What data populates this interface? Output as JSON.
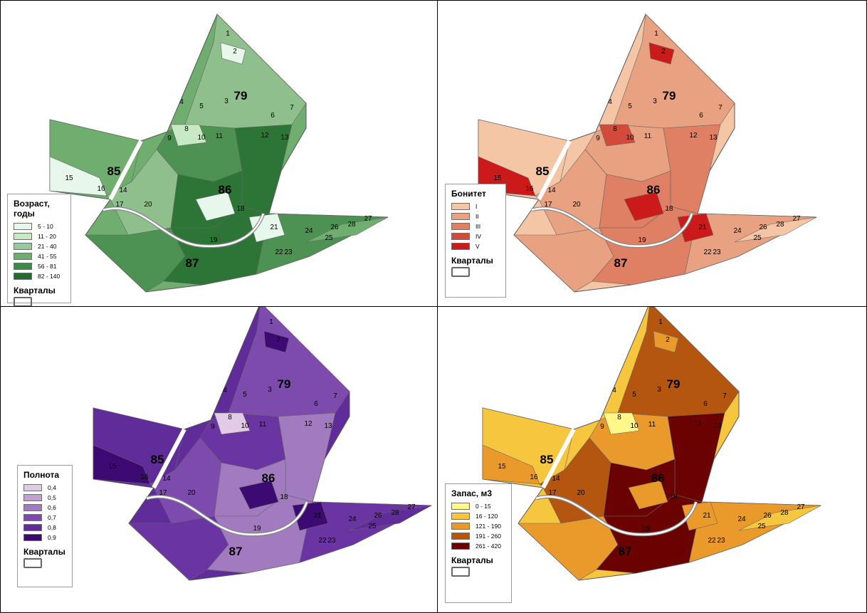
{
  "panels": [
    {
      "id": "age",
      "legend_title": "Возраст, годы",
      "classes": [
        {
          "label": "5 - 10",
          "color": "#e8f7ec"
        },
        {
          "label": "11 - 20",
          "color": "#c7e9c3"
        },
        {
          "label": "21 - 40",
          "color": "#96c99c"
        },
        {
          "label": "41 - 55",
          "color": "#6fae6f"
        },
        {
          "label": "56 - 81",
          "color": "#3d8a48"
        },
        {
          "label": "82 - 140",
          "color": "#226a30"
        }
      ],
      "quarters_label": "Кварталы",
      "fills": [
        "#8fbf8c",
        "#4d9253",
        "#2c7537",
        "#6fae6f",
        "#c7e9c3",
        "#e8f7ec"
      ]
    },
    {
      "id": "bonitet",
      "legend_title": "Бонитет",
      "classes": [
        {
          "label": "I",
          "color": "#f4c6a6"
        },
        {
          "label": "II",
          "color": "#e8a282"
        },
        {
          "label": "III",
          "color": "#df7f63"
        },
        {
          "label": "IV",
          "color": "#d44a3a"
        },
        {
          "label": "V",
          "color": "#cc1a1a"
        }
      ],
      "quarters_label": "Кварталы",
      "fills": [
        "#e8a282",
        "#e8a282",
        "#df7f63",
        "#f4c6a6",
        "#d44a3a",
        "#cc1a1a"
      ]
    },
    {
      "id": "density",
      "legend_title": "Полнота",
      "classes": [
        {
          "label": "0,4",
          "color": "#e2cbe5"
        },
        {
          "label": "0,5",
          "color": "#c2a0d0"
        },
        {
          "label": "0,6",
          "color": "#a27ac0"
        },
        {
          "label": "0,7",
          "color": "#7d4aae"
        },
        {
          "label": "0,8",
          "color": "#5f2c99"
        },
        {
          "label": "0,9",
          "color": "#3d0a73"
        }
      ],
      "quarters_label": "Кварталы",
      "fills": [
        "#7d4aae",
        "#6a34a2",
        "#a27ac0",
        "#5f2c99",
        "#e2cbe5",
        "#3d0a73"
      ]
    },
    {
      "id": "stock",
      "legend_title": "Запас, м3",
      "classes": [
        {
          "label": "0 - 15",
          "color": "#fff78a"
        },
        {
          "label": "16 - 120",
          "color": "#f7c63f"
        },
        {
          "label": "121 - 190",
          "color": "#ea9a2b"
        },
        {
          "label": "191 - 260",
          "color": "#b4560f"
        },
        {
          "label": "261 - 420",
          "color": "#6b0202"
        }
      ],
      "quarters_label": "Кварталы",
      "fills": [
        "#b4560f",
        "#ea9a2b",
        "#6b0202",
        "#f7c63f",
        "#fff78a",
        "#ea9a2b"
      ]
    }
  ],
  "quarters": [
    "79",
    "85",
    "86",
    "87"
  ],
  "stands": [
    "1",
    "2",
    "3",
    "4",
    "5",
    "6",
    "7",
    "8",
    "9",
    "10",
    "11",
    "12",
    "13",
    "14",
    "15",
    "16",
    "17",
    "18",
    "19",
    "20",
    "21",
    "22",
    "23",
    "24",
    "25",
    "26",
    "27",
    "28"
  ]
}
